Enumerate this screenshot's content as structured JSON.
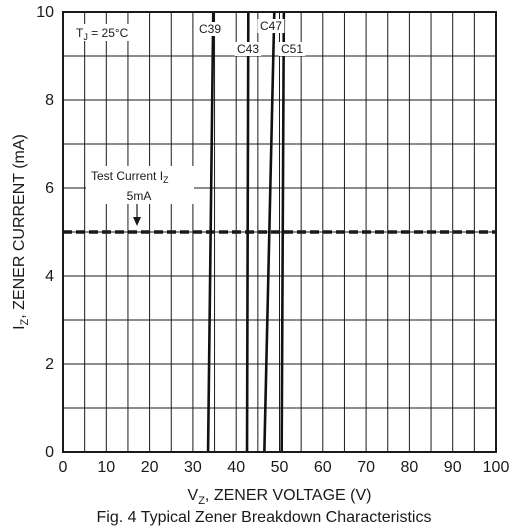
{
  "chart_data": {
    "type": "line",
    "caption": "Fig. 4  Typical Zener Breakdown Characteristics",
    "xlabel": {
      "base": "V",
      "sub": "Z",
      "rest": ", ZENER VOLTAGE (V)"
    },
    "ylabel": {
      "base": "I",
      "sub": "Z",
      "rest": ", ZENER CURRENT (mA)"
    },
    "xlim": [
      0,
      100
    ],
    "ylim": [
      0,
      10
    ],
    "xticks": [
      0,
      10,
      20,
      30,
      40,
      50,
      60,
      70,
      80,
      90,
      100
    ],
    "yticks": [
      0,
      2,
      4,
      6,
      8,
      10
    ],
    "grid": true,
    "temperature_note": {
      "base": "T",
      "sub": "J",
      "rest": " = 25°C"
    },
    "test_current": {
      "value": 5,
      "label_line1_base": "Test Current I",
      "label_line1_sub": "Z",
      "label_line2": "5mA"
    },
    "series": [
      {
        "name": "C39",
        "points": [
          [
            33.5,
            0
          ],
          [
            34.7,
            10
          ]
        ]
      },
      {
        "name": "C43",
        "points": [
          [
            42.5,
            0
          ],
          [
            42.8,
            10
          ]
        ]
      },
      {
        "name": "C47",
        "points": [
          [
            46.5,
            0
          ],
          [
            48.8,
            10
          ]
        ]
      },
      {
        "name": "C51",
        "points": [
          [
            50.5,
            0
          ],
          [
            51.0,
            10
          ]
        ]
      }
    ]
  }
}
